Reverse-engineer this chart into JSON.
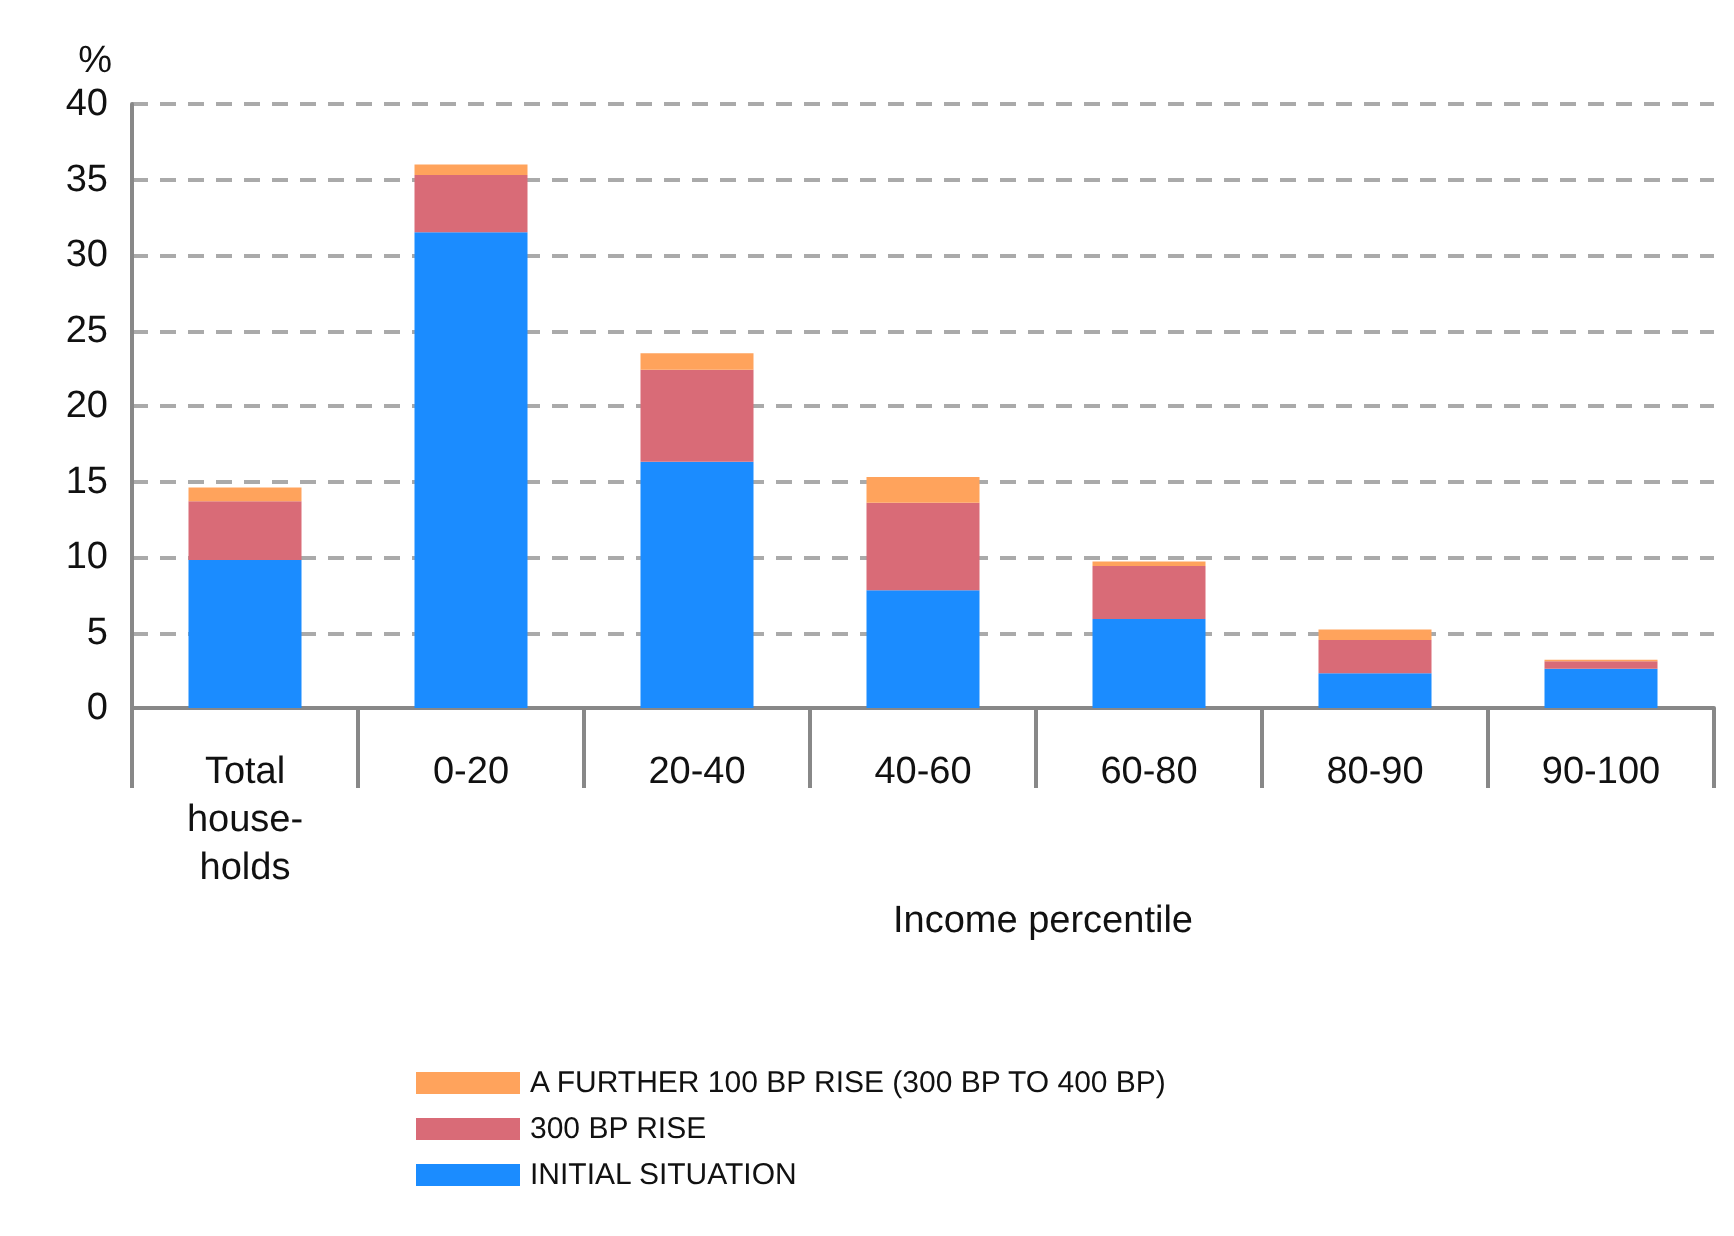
{
  "chart_data": {
    "type": "bar",
    "stacked": true,
    "ylabel": "%",
    "xlabel": "Income percentile",
    "categories": [
      "Total\nhouse-\nholds",
      "0-20",
      "20-40",
      "40-60",
      "60-80",
      "80-90",
      "90-100"
    ],
    "series": [
      {
        "name": "INITIAL SITUATION",
        "color": "#1b8cff",
        "values": [
          9.8,
          31.5,
          16.3,
          7.8,
          5.9,
          2.3,
          2.6
        ]
      },
      {
        "name": "300 BP RISE",
        "color": "#d96b77",
        "values": [
          3.9,
          3.8,
          6.1,
          5.8,
          3.5,
          2.2,
          0.5
        ]
      },
      {
        "name": "A FURTHER 100 BP RISE (300 BP TO 400 BP)",
        "color": "#ffa35c",
        "values": [
          0.9,
          0.7,
          1.1,
          1.7,
          0.3,
          0.7,
          0.1
        ]
      }
    ],
    "ylim": [
      0,
      40
    ],
    "yticks": [
      0,
      5,
      10,
      15,
      20,
      25,
      30,
      35,
      40
    ],
    "grid": "y",
    "legend": "bottom"
  }
}
